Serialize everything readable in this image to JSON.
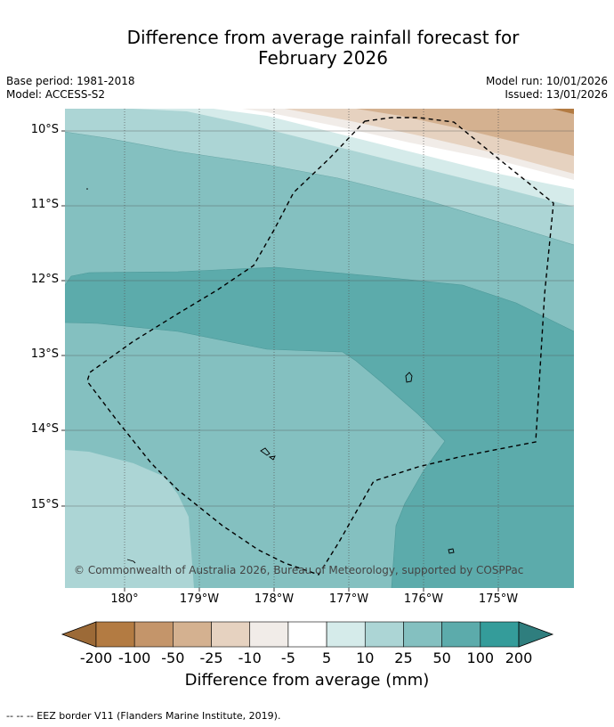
{
  "title_line1": "Difference from average rainfall forecast for",
  "title_line2": "February 2026",
  "meta": {
    "base_period": "Base period: 1981-2018",
    "model": "Model: ACCESS-S2",
    "model_run": "Model run: 10/01/2026",
    "issued": "Issued: 13/01/2026"
  },
  "map": {
    "lat_labels": [
      "10°S",
      "11°S",
      "12°S",
      "13°S",
      "14°S",
      "15°S"
    ],
    "lon_labels": [
      "180°",
      "179°W",
      "178°W",
      "177°W",
      "176°W",
      "175°W"
    ],
    "copyright": "© Commonwealth of Australia 2026, Bureau of Meteorology, supported by COSPPac"
  },
  "colorbar": {
    "ticks": [
      "-200",
      "-100",
      "-50",
      "-25",
      "-10",
      "-5",
      "5",
      "10",
      "25",
      "50",
      "100",
      "200"
    ],
    "colors": [
      "#9c6a37",
      "#b37b42",
      "#c4956a",
      "#d4b190",
      "#e6d2c0",
      "#f1ece8",
      "#ffffff",
      "#d5ebea",
      "#acd5d5",
      "#84c0c0",
      "#5cabab",
      "#349c9a",
      "#2f7e7e"
    ],
    "title": "Difference from average (mm)"
  },
  "eez_note": "--  --  -- EEZ border V11 (Flanders Marine Institute, 2019)."
}
